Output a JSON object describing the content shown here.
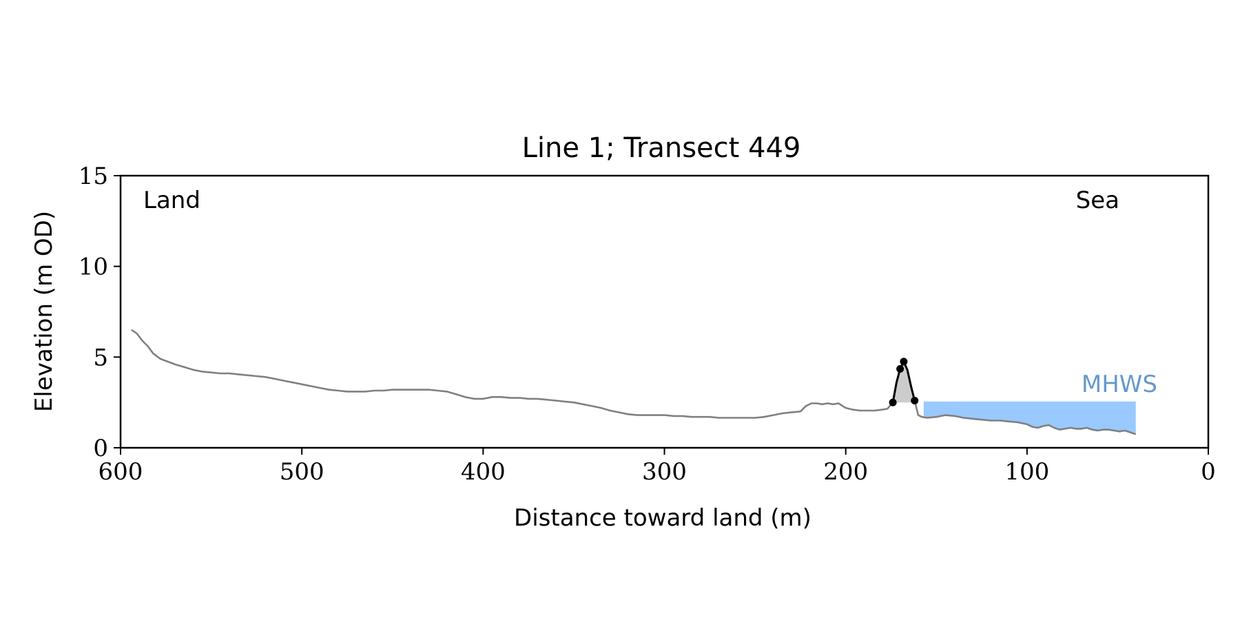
{
  "chart_data": {
    "type": "line",
    "title": "Line 1; Transect 449",
    "xlabel": "Distance toward land (m)",
    "ylabel": "Elevation (m OD)",
    "xlim": [
      600,
      0
    ],
    "ylim": [
      0,
      15
    ],
    "xticks": [
      600,
      500,
      400,
      300,
      200,
      100,
      0
    ],
    "yticks": [
      0,
      5,
      10,
      15
    ],
    "grid": false,
    "annotations": {
      "land": "Land",
      "sea": "Sea",
      "mhws": "MHWS"
    },
    "colors": {
      "profile": "#808080",
      "dune": "#000000",
      "dune_fill": "#cccccc",
      "water": "#99c9ff",
      "mhws_text": "#6699cc"
    },
    "mhws_level": 2.55,
    "profile": {
      "x": [
        594,
        591,
        588,
        585,
        582,
        578,
        574,
        570,
        565,
        560,
        555,
        550,
        545,
        540,
        535,
        530,
        525,
        520,
        515,
        510,
        505,
        500,
        495,
        490,
        485,
        480,
        475,
        470,
        465,
        460,
        455,
        450,
        445,
        440,
        435,
        430,
        425,
        420,
        415,
        410,
        405,
        400,
        395,
        390,
        385,
        380,
        375,
        370,
        365,
        360,
        355,
        350,
        345,
        340,
        335,
        330,
        325,
        320,
        315,
        310,
        305,
        300,
        295,
        290,
        285,
        280,
        275,
        270,
        265,
        260,
        255,
        250,
        245,
        240,
        235,
        230,
        225,
        222,
        219,
        216,
        213,
        210,
        207,
        204,
        200,
        196,
        192,
        188,
        184,
        180,
        177,
        174
      ],
      "y": [
        6.5,
        6.3,
        5.9,
        5.6,
        5.2,
        4.9,
        4.75,
        4.6,
        4.45,
        4.3,
        4.2,
        4.15,
        4.1,
        4.1,
        4.05,
        4.0,
        3.95,
        3.9,
        3.8,
        3.7,
        3.6,
        3.5,
        3.4,
        3.3,
        3.2,
        3.15,
        3.1,
        3.1,
        3.1,
        3.15,
        3.15,
        3.2,
        3.2,
        3.2,
        3.2,
        3.2,
        3.15,
        3.1,
        2.95,
        2.8,
        2.7,
        2.7,
        2.8,
        2.8,
        2.75,
        2.75,
        2.7,
        2.7,
        2.65,
        2.6,
        2.55,
        2.5,
        2.4,
        2.3,
        2.2,
        2.05,
        1.95,
        1.85,
        1.8,
        1.8,
        1.8,
        1.8,
        1.75,
        1.75,
        1.7,
        1.7,
        1.7,
        1.65,
        1.65,
        1.65,
        1.65,
        1.65,
        1.7,
        1.8,
        1.9,
        1.95,
        2.0,
        2.3,
        2.45,
        2.45,
        2.4,
        2.45,
        2.4,
        2.45,
        2.2,
        2.1,
        2.05,
        2.05,
        2.05,
        2.1,
        2.15,
        2.5
      ]
    },
    "dune": {
      "x": [
        174,
        172,
        170,
        168,
        166,
        164,
        162
      ],
      "y": [
        2.5,
        3.6,
        4.35,
        4.75,
        4.3,
        3.4,
        2.6
      ]
    },
    "dune_markers": {
      "x": [
        174,
        170,
        168,
        162
      ],
      "y": [
        2.5,
        4.35,
        4.75,
        2.6
      ]
    },
    "seaward": {
      "x": [
        162,
        160,
        158,
        155,
        150,
        145,
        140,
        135,
        130,
        125,
        120,
        115,
        110,
        105,
        100,
        97,
        94,
        91,
        88,
        85,
        82,
        79,
        76,
        73,
        70,
        67,
        64,
        61,
        58,
        55,
        52,
        49,
        46,
        43,
        40
      ],
      "y": [
        2.6,
        1.8,
        1.7,
        1.65,
        1.7,
        1.8,
        1.75,
        1.65,
        1.6,
        1.55,
        1.5,
        1.5,
        1.45,
        1.4,
        1.3,
        1.15,
        1.1,
        1.2,
        1.25,
        1.1,
        1.0,
        1.05,
        1.1,
        1.05,
        1.05,
        1.1,
        1.0,
        0.95,
        1.0,
        1.0,
        0.95,
        0.9,
        0.95,
        0.85,
        0.75
      ]
    },
    "water": {
      "x": [
        157,
        155,
        150,
        145,
        140,
        135,
        130,
        125,
        120,
        115,
        110,
        105,
        100,
        97,
        94,
        91,
        88,
        85,
        82,
        79,
        76,
        73,
        70,
        67,
        64,
        61,
        58,
        55,
        52,
        49,
        46,
        43,
        40
      ],
      "y": [
        1.7,
        1.65,
        1.7,
        1.8,
        1.75,
        1.65,
        1.6,
        1.55,
        1.5,
        1.5,
        1.45,
        1.4,
        1.3,
        1.15,
        1.1,
        1.2,
        1.25,
        1.1,
        1.0,
        1.05,
        1.1,
        1.05,
        1.05,
        1.1,
        1.0,
        0.95,
        1.0,
        1.0,
        0.95,
        0.9,
        0.95,
        0.85,
        0.75
      ]
    }
  }
}
